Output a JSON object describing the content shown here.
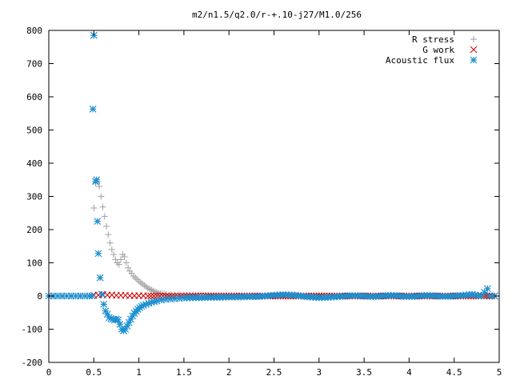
{
  "chart_data": {
    "type": "scatter",
    "title": "m2/n1.5/q2.0/r-+.10-j27/M1.0/256",
    "xlabel": "",
    "ylabel": "",
    "xlim": [
      0,
      5
    ],
    "ylim": [
      -200,
      800
    ],
    "x_ticks": [
      "0",
      "0.5",
      "1",
      "1.5",
      "2",
      "2.5",
      "3",
      "3.5",
      "4",
      "4.5",
      "5"
    ],
    "x_tick_values": [
      0,
      0.5,
      1,
      1.5,
      2,
      2.5,
      3,
      3.5,
      4,
      4.5,
      5
    ],
    "y_ticks": [
      "-200",
      "-100",
      "0",
      "100",
      "200",
      "300",
      "400",
      "500",
      "600",
      "700",
      "800"
    ],
    "y_tick_values": [
      -200,
      -100,
      0,
      100,
      200,
      300,
      400,
      500,
      600,
      700,
      800
    ],
    "grid": false,
    "legend_position": "top-right",
    "series": [
      {
        "name": "R stress",
        "marker": "plus",
        "color": "#a0a0a0",
        "points": [
          [
            0.0,
            0
          ],
          [
            0.1,
            0
          ],
          [
            0.2,
            0
          ],
          [
            0.3,
            0
          ],
          [
            0.4,
            0
          ],
          [
            0.48,
            0
          ],
          [
            0.5,
            265
          ],
          [
            0.52,
            340
          ],
          [
            0.54,
            345
          ],
          [
            0.56,
            330
          ],
          [
            0.58,
            300
          ],
          [
            0.6,
            268
          ],
          [
            0.62,
            240
          ],
          [
            0.64,
            210
          ],
          [
            0.66,
            185
          ],
          [
            0.68,
            160
          ],
          [
            0.7,
            140
          ],
          [
            0.72,
            125
          ],
          [
            0.74,
            110
          ],
          [
            0.76,
            100
          ],
          [
            0.78,
            95
          ],
          [
            0.8,
            110
          ],
          [
            0.82,
            125
          ],
          [
            0.84,
            118
          ],
          [
            0.86,
            100
          ],
          [
            0.88,
            85
          ],
          [
            0.9,
            75
          ],
          [
            0.92,
            68
          ],
          [
            0.94,
            60
          ],
          [
            0.96,
            55
          ],
          [
            0.98,
            50
          ],
          [
            1.0,
            45
          ],
          [
            1.02,
            40
          ],
          [
            1.04,
            36
          ],
          [
            1.06,
            32
          ],
          [
            1.08,
            28
          ],
          [
            1.1,
            24
          ],
          [
            1.12,
            21
          ],
          [
            1.14,
            18
          ],
          [
            1.16,
            15
          ],
          [
            1.18,
            13
          ],
          [
            1.2,
            11
          ],
          [
            1.22,
            9
          ],
          [
            1.24,
            8
          ],
          [
            1.26,
            7
          ],
          [
            1.28,
            6
          ],
          [
            1.3,
            5
          ],
          [
            1.35,
            4
          ],
          [
            1.4,
            3
          ],
          [
            1.45,
            3
          ],
          [
            1.5,
            2
          ],
          [
            1.6,
            2
          ],
          [
            1.7,
            1
          ],
          [
            1.8,
            1
          ],
          [
            2.0,
            0
          ],
          [
            2.2,
            0
          ],
          [
            2.4,
            0
          ],
          [
            2.6,
            0
          ],
          [
            2.8,
            0
          ],
          [
            3.0,
            0
          ],
          [
            3.2,
            0
          ],
          [
            3.4,
            0
          ],
          [
            3.6,
            0
          ],
          [
            3.8,
            0
          ],
          [
            4.0,
            0
          ],
          [
            4.2,
            0
          ],
          [
            4.4,
            0
          ],
          [
            4.6,
            0
          ],
          [
            4.8,
            0
          ],
          [
            4.95,
            0
          ]
        ]
      },
      {
        "name": "G work",
        "marker": "cross",
        "color": "#cc0000",
        "points": [
          [
            0.5,
            2
          ],
          [
            0.55,
            3
          ],
          [
            0.6,
            4
          ],
          [
            0.65,
            3
          ],
          [
            0.7,
            3
          ],
          [
            0.75,
            2
          ],
          [
            0.8,
            2
          ],
          [
            0.85,
            2
          ],
          [
            0.9,
            1
          ],
          [
            0.95,
            1
          ],
          [
            1.0,
            1
          ],
          [
            1.05,
            1
          ],
          [
            1.1,
            0
          ],
          [
            1.2,
            0
          ],
          [
            1.3,
            0
          ],
          [
            1.4,
            0
          ],
          [
            1.5,
            0
          ],
          [
            1.6,
            0
          ],
          [
            1.8,
            0
          ],
          [
            2.0,
            0
          ],
          [
            2.2,
            0
          ],
          [
            2.4,
            0
          ],
          [
            2.6,
            0
          ],
          [
            2.8,
            0
          ],
          [
            3.0,
            0
          ],
          [
            3.2,
            0
          ],
          [
            3.4,
            0
          ],
          [
            3.6,
            0
          ],
          [
            3.8,
            0
          ],
          [
            4.0,
            0
          ],
          [
            4.2,
            0
          ],
          [
            4.4,
            0
          ],
          [
            4.6,
            0
          ],
          [
            4.8,
            0
          ],
          [
            4.95,
            0
          ]
        ]
      },
      {
        "name": "Acoustic flux",
        "marker": "star",
        "color": "#1e90d0",
        "points": [
          [
            0.0,
            0
          ],
          [
            0.05,
            0
          ],
          [
            0.1,
            0
          ],
          [
            0.15,
            0
          ],
          [
            0.2,
            0
          ],
          [
            0.25,
            0
          ],
          [
            0.3,
            0
          ],
          [
            0.35,
            0
          ],
          [
            0.4,
            0
          ],
          [
            0.45,
            0
          ],
          [
            0.48,
            0
          ],
          [
            0.49,
            563
          ],
          [
            0.5,
            785
          ],
          [
            0.52,
            345
          ],
          [
            0.53,
            350
          ],
          [
            0.54,
            225
          ],
          [
            0.55,
            128
          ],
          [
            0.57,
            55
          ],
          [
            0.59,
            5
          ],
          [
            0.61,
            -25
          ],
          [
            0.63,
            -45
          ],
          [
            0.65,
            -55
          ],
          [
            0.67,
            -65
          ],
          [
            0.69,
            -68
          ],
          [
            0.71,
            -70
          ],
          [
            0.73,
            -72
          ],
          [
            0.75,
            -70
          ],
          [
            0.77,
            -72
          ],
          [
            0.79,
            -85
          ],
          [
            0.81,
            -100
          ],
          [
            0.83,
            -105
          ],
          [
            0.85,
            -100
          ],
          [
            0.87,
            -90
          ],
          [
            0.89,
            -80
          ],
          [
            0.91,
            -70
          ],
          [
            0.93,
            -60
          ],
          [
            0.95,
            -52
          ],
          [
            0.97,
            -46
          ],
          [
            0.99,
            -40
          ],
          [
            1.01,
            -35
          ],
          [
            1.03,
            -31
          ],
          [
            1.05,
            -28
          ],
          [
            1.08,
            -25
          ],
          [
            1.11,
            -22
          ],
          [
            1.14,
            -19
          ],
          [
            1.17,
            -17
          ],
          [
            1.2,
            -15
          ],
          [
            1.25,
            -12
          ],
          [
            1.3,
            -10
          ],
          [
            1.35,
            -9
          ],
          [
            1.4,
            -8
          ],
          [
            1.45,
            -7
          ],
          [
            1.5,
            -6
          ],
          [
            1.6,
            -5
          ],
          [
            1.7,
            -5
          ],
          [
            1.8,
            -4
          ],
          [
            1.9,
            -4
          ],
          [
            2.0,
            -3
          ],
          [
            2.1,
            -3
          ],
          [
            2.2,
            -2
          ],
          [
            2.3,
            -2
          ],
          [
            2.4,
            0
          ],
          [
            2.5,
            2
          ],
          [
            2.6,
            4
          ],
          [
            2.7,
            3
          ],
          [
            2.8,
            0
          ],
          [
            2.9,
            -3
          ],
          [
            3.0,
            -5
          ],
          [
            3.1,
            -4
          ],
          [
            3.2,
            -2
          ],
          [
            3.3,
            0
          ],
          [
            3.4,
            1
          ],
          [
            3.5,
            0
          ],
          [
            3.6,
            -2
          ],
          [
            3.7,
            0
          ],
          [
            3.8,
            2
          ],
          [
            3.9,
            0
          ],
          [
            4.0,
            -2
          ],
          [
            4.1,
            0
          ],
          [
            4.2,
            2
          ],
          [
            4.3,
            0
          ],
          [
            4.4,
            -1
          ],
          [
            4.5,
            0
          ],
          [
            4.6,
            2
          ],
          [
            4.7,
            5
          ],
          [
            4.8,
            0
          ],
          [
            4.87,
            22
          ],
          [
            4.9,
            0
          ],
          [
            4.95,
            0
          ]
        ]
      }
    ]
  }
}
